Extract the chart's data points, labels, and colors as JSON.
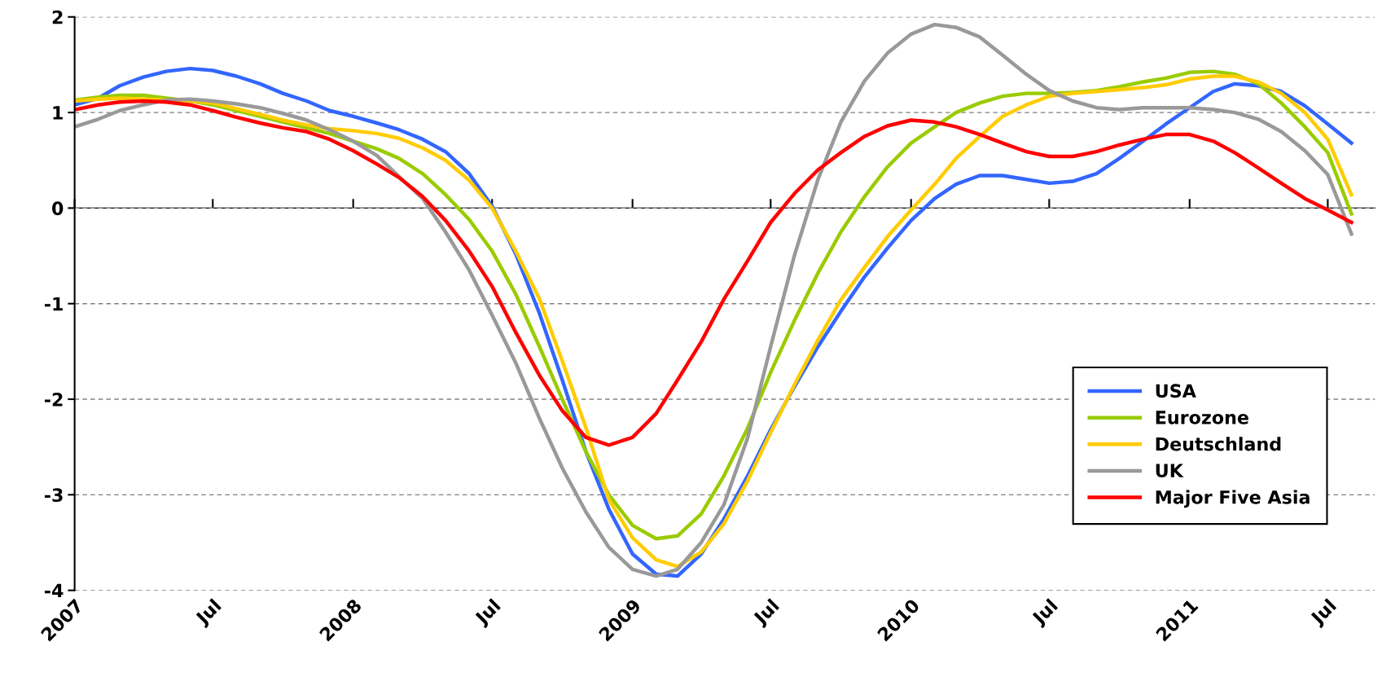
{
  "chart_data": {
    "type": "line",
    "x": [
      "2007-01",
      "2007-02",
      "2007-03",
      "2007-04",
      "2007-05",
      "2007-06",
      "2007-07",
      "2007-08",
      "2007-09",
      "2007-10",
      "2007-11",
      "2007-12",
      "2008-01",
      "2008-02",
      "2008-03",
      "2008-04",
      "2008-05",
      "2008-06",
      "2008-07",
      "2008-08",
      "2008-09",
      "2008-10",
      "2008-11",
      "2008-12",
      "2009-01",
      "2009-02",
      "2009-03",
      "2009-04",
      "2009-05",
      "2009-06",
      "2009-07",
      "2009-08",
      "2009-09",
      "2009-10",
      "2009-11",
      "2009-12",
      "2010-01",
      "2010-02",
      "2010-03",
      "2010-04",
      "2010-05",
      "2010-06",
      "2010-07",
      "2010-08",
      "2010-09",
      "2010-10",
      "2010-11",
      "2010-12",
      "2011-01",
      "2011-02",
      "2011-03",
      "2011-04",
      "2011-05",
      "2011-06",
      "2011-07",
      "2011-08"
    ],
    "series": [
      {
        "name": "USA",
        "color": "#3366ff",
        "values": [
          1.08,
          1.15,
          1.28,
          1.37,
          1.43,
          1.46,
          1.44,
          1.38,
          1.3,
          1.2,
          1.12,
          1.02,
          0.96,
          0.89,
          0.82,
          0.72,
          0.59,
          0.36,
          0.02,
          -0.48,
          -1.1,
          -1.8,
          -2.55,
          -3.15,
          -3.62,
          -3.83,
          -3.85,
          -3.62,
          -3.25,
          -2.8,
          -2.32,
          -1.87,
          -1.45,
          -1.08,
          -0.72,
          -0.42,
          -0.13,
          0.1,
          0.25,
          0.34,
          0.34,
          0.3,
          0.26,
          0.28,
          0.36,
          0.52,
          0.7,
          0.88,
          1.05,
          1.22,
          1.3,
          1.28,
          1.22,
          1.07,
          0.88,
          0.68
        ]
      },
      {
        "name": "Eurozone",
        "color": "#99cc00",
        "values": [
          1.13,
          1.16,
          1.18,
          1.18,
          1.15,
          1.12,
          1.08,
          1.02,
          0.96,
          0.9,
          0.84,
          0.78,
          0.7,
          0.62,
          0.52,
          0.36,
          0.14,
          -0.12,
          -0.45,
          -0.9,
          -1.45,
          -2.0,
          -2.55,
          -3.0,
          -3.32,
          -3.46,
          -3.43,
          -3.2,
          -2.8,
          -2.3,
          -1.72,
          -1.18,
          -0.68,
          -0.25,
          0.12,
          0.43,
          0.68,
          0.85,
          1.0,
          1.1,
          1.17,
          1.2,
          1.2,
          1.21,
          1.23,
          1.27,
          1.32,
          1.36,
          1.42,
          1.43,
          1.4,
          1.3,
          1.1,
          0.85,
          0.58,
          -0.06
        ]
      },
      {
        "name": "Deutschland",
        "color": "#ffcc00",
        "values": [
          1.12,
          1.14,
          1.15,
          1.14,
          1.13,
          1.12,
          1.1,
          1.04,
          0.98,
          0.92,
          0.87,
          0.83,
          0.81,
          0.78,
          0.73,
          0.63,
          0.5,
          0.29,
          0.0,
          -0.45,
          -0.95,
          -1.6,
          -2.3,
          -3.05,
          -3.45,
          -3.68,
          -3.75,
          -3.6,
          -3.3,
          -2.85,
          -2.35,
          -1.85,
          -1.38,
          -0.96,
          -0.62,
          -0.3,
          -0.02,
          0.25,
          0.52,
          0.75,
          0.96,
          1.08,
          1.17,
          1.2,
          1.22,
          1.24,
          1.26,
          1.29,
          1.35,
          1.38,
          1.38,
          1.32,
          1.2,
          1.0,
          0.72,
          0.14
        ]
      },
      {
        "name": "UK",
        "color": "#999999",
        "values": [
          0.85,
          0.93,
          1.02,
          1.08,
          1.13,
          1.14,
          1.12,
          1.09,
          1.05,
          0.99,
          0.92,
          0.82,
          0.7,
          0.55,
          0.33,
          0.1,
          -0.25,
          -0.65,
          -1.12,
          -1.62,
          -2.2,
          -2.72,
          -3.18,
          -3.55,
          -3.78,
          -3.85,
          -3.78,
          -3.5,
          -3.1,
          -2.4,
          -1.45,
          -0.5,
          0.3,
          0.9,
          1.33,
          1.62,
          1.82,
          1.92,
          1.89,
          1.79,
          1.6,
          1.4,
          1.23,
          1.12,
          1.05,
          1.03,
          1.05,
          1.05,
          1.05,
          1.03,
          1.0,
          0.93,
          0.8,
          0.6,
          0.35,
          -0.27
        ]
      },
      {
        "name": "Major Five Asia",
        "color": "#ff0000",
        "values": [
          1.03,
          1.08,
          1.11,
          1.12,
          1.11,
          1.08,
          1.02,
          0.95,
          0.89,
          0.84,
          0.8,
          0.72,
          0.6,
          0.46,
          0.32,
          0.12,
          -0.13,
          -0.45,
          -0.82,
          -1.3,
          -1.75,
          -2.12,
          -2.4,
          -2.48,
          -2.4,
          -2.15,
          -1.8,
          -1.4,
          -0.95,
          -0.55,
          -0.15,
          0.15,
          0.4,
          0.58,
          0.75,
          0.86,
          0.92,
          0.9,
          0.85,
          0.77,
          0.68,
          0.59,
          0.54,
          0.54,
          0.59,
          0.66,
          0.72,
          0.77,
          0.77,
          0.7,
          0.58,
          0.42,
          0.26,
          0.1,
          -0.02,
          -0.15
        ]
      }
    ],
    "xlim": [
      "2007-01",
      "2011-09"
    ],
    "xticks": [
      {
        "value": "2007-01",
        "label": "2007"
      },
      {
        "value": "2007-07",
        "label": "Jul"
      },
      {
        "value": "2008-01",
        "label": "2008"
      },
      {
        "value": "2008-07",
        "label": "Jul"
      },
      {
        "value": "2009-01",
        "label": "2009"
      },
      {
        "value": "2009-07",
        "label": "Jul"
      },
      {
        "value": "2010-01",
        "label": "2010"
      },
      {
        "value": "2010-07",
        "label": "Jul"
      },
      {
        "value": "2011-01",
        "label": "2011"
      },
      {
        "value": "2011-07",
        "label": "Jul"
      }
    ],
    "ylim": [
      -4,
      2
    ],
    "yticks": [
      -4,
      -3,
      -2,
      -1,
      0,
      1,
      2
    ],
    "grid": "y",
    "legend": "bottom right",
    "marker": "none",
    "line_style": "solid"
  }
}
